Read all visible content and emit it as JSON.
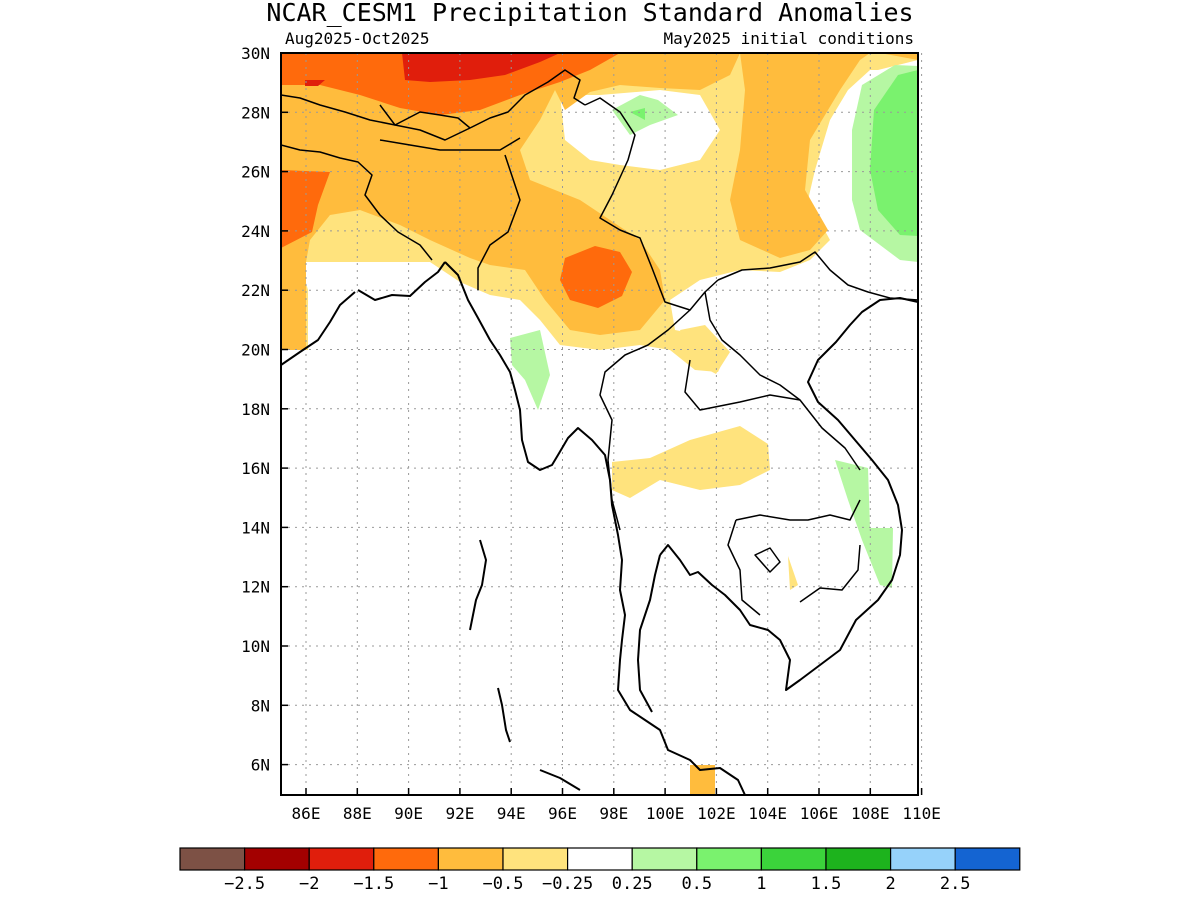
{
  "header": {
    "title": "NCAR_CESM1 Precipitation Standard Anomalies",
    "period": "Aug2025-Oct2025",
    "init": "May2025 initial conditions"
  },
  "axes": {
    "lat_labels": [
      "30N",
      "28N",
      "26N",
      "24N",
      "22N",
      "20N",
      "18N",
      "16N",
      "14N",
      "12N",
      "10N",
      "8N",
      "6N"
    ],
    "lon_labels": [
      "86E",
      "88E",
      "90E",
      "92E",
      "94E",
      "96E",
      "98E",
      "100E",
      "102E",
      "104E",
      "106E",
      "108E",
      "110E"
    ]
  },
  "colorbar": {
    "colors": [
      "#7d5145",
      "#a30000",
      "#e01e0c",
      "#ff6a0c",
      "#ffbc3d",
      "#ffe37d",
      "#ffffff",
      "#b6f7a3",
      "#7af26e",
      "#3bd33b",
      "#1db31d",
      "#96d2fa",
      "#1464d2"
    ],
    "labels": [
      "-2.5",
      "-2",
      "-1.5",
      "-1",
      "-0.5",
      "-0.25",
      "0.25",
      "0.5",
      "1",
      "1.5",
      "2",
      "2.5"
    ]
  },
  "map": {
    "lon_range": [
      84,
      110
    ],
    "lat_range": [
      5,
      30
    ],
    "features": [
      "coastlines",
      "country-borders"
    ]
  }
}
